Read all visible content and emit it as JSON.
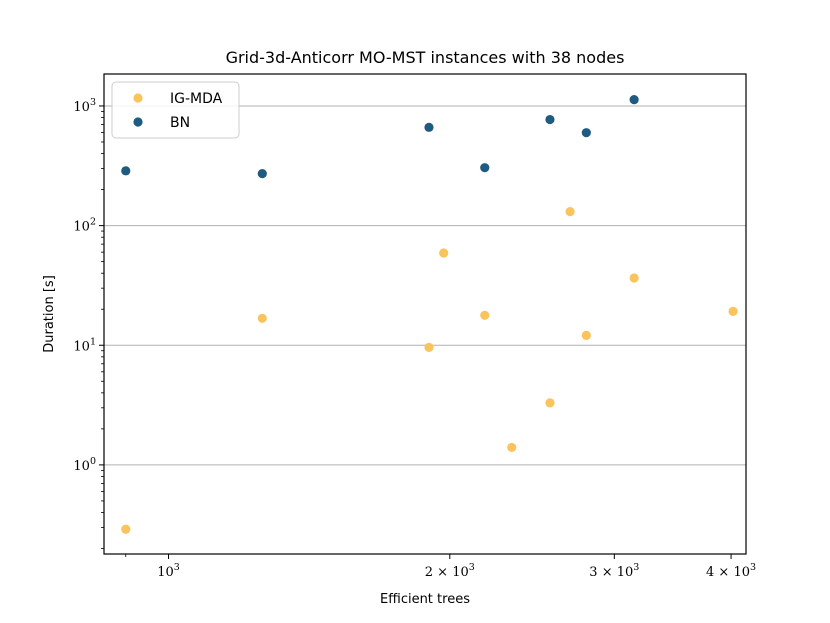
{
  "chart_data": {
    "type": "scatter",
    "title": "Grid-3d-Anticorr MO-MST instances with 38 nodes",
    "xlabel": "Efficient trees",
    "ylabel": "Duration [s]",
    "xscale": "log",
    "yscale": "log",
    "xlim": [
      853,
      4150
    ],
    "ylim": [
      0.18,
      1850
    ],
    "grid": "y-major",
    "legend_position": "top-left",
    "x_ticks": [
      {
        "value": 1000,
        "base": "10",
        "exp": "3"
      },
      {
        "value": 2000,
        "base": "2 × 10",
        "exp": "3"
      },
      {
        "value": 3000,
        "base": "3 × 10",
        "exp": "3"
      },
      {
        "value": 4000,
        "base": "4 × 10",
        "exp": "3"
      }
    ],
    "y_ticks": [
      {
        "value": 1,
        "base": "10",
        "exp": "0"
      },
      {
        "value": 10,
        "base": "10",
        "exp": "1"
      },
      {
        "value": 100,
        "base": "10",
        "exp": "2"
      },
      {
        "value": 1000,
        "base": "10",
        "exp": "3"
      }
    ],
    "series": [
      {
        "name": "IG-MDA",
        "color": "#f9c45c",
        "points": [
          {
            "x": 900,
            "y": 0.29
          },
          {
            "x": 1260,
            "y": 16.8
          },
          {
            "x": 1900,
            "y": 9.6
          },
          {
            "x": 1970,
            "y": 59
          },
          {
            "x": 2180,
            "y": 17.8
          },
          {
            "x": 2330,
            "y": 1.4
          },
          {
            "x": 2560,
            "y": 3.3
          },
          {
            "x": 2690,
            "y": 131
          },
          {
            "x": 2800,
            "y": 12.1
          },
          {
            "x": 3150,
            "y": 36.5
          },
          {
            "x": 4020,
            "y": 19.2
          }
        ]
      },
      {
        "name": "BN",
        "color": "#1f5a80",
        "points": [
          {
            "x": 900,
            "y": 287
          },
          {
            "x": 1260,
            "y": 272
          },
          {
            "x": 1900,
            "y": 663
          },
          {
            "x": 2180,
            "y": 305
          },
          {
            "x": 2560,
            "y": 770
          },
          {
            "x": 2800,
            "y": 598
          },
          {
            "x": 3150,
            "y": 1130
          }
        ]
      }
    ]
  }
}
